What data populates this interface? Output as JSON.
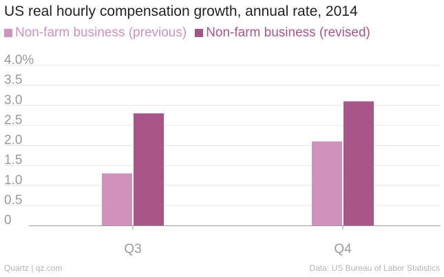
{
  "chart_data": {
    "type": "bar",
    "title": "US real hourly compensation growth, annual rate, 2014",
    "categories": [
      "Q3",
      "Q4"
    ],
    "series": [
      {
        "name": "Non-farm business (previous)",
        "color": "#d092bd",
        "values": [
          1.3,
          2.1
        ]
      },
      {
        "name": "Non-farm business (revised)",
        "color": "#a8558a",
        "values": [
          2.8,
          3.1
        ]
      }
    ],
    "ylim": [
      0,
      4.0
    ],
    "y_ticks": [
      "0",
      "0.5",
      "1.0",
      "1.5",
      "2.0",
      "2.5",
      "3.0",
      "3.5",
      "4.0%"
    ],
    "y_tick_values": [
      0,
      0.5,
      1.0,
      1.5,
      2.0,
      2.5,
      3.0,
      3.5,
      4.0
    ],
    "xlabel": "",
    "ylabel": "",
    "grid": true
  },
  "footer": {
    "source_left": "Quartz | qz.com",
    "source_right": "Data: US Bureau of Labor Statistics"
  }
}
